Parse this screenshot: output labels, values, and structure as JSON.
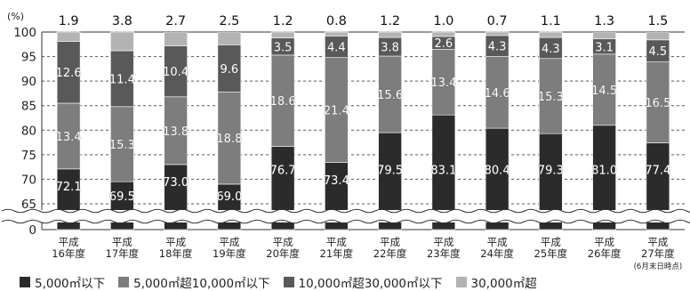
{
  "chart_data": {
    "type": "bar",
    "stacked": true,
    "unit_label": "(%)",
    "categories": [
      [
        "平成",
        "16年度"
      ],
      [
        "平成",
        "17年度"
      ],
      [
        "平成",
        "18年度"
      ],
      [
        "平成",
        "19年度"
      ],
      [
        "平成",
        "20年度"
      ],
      [
        "平成",
        "21年度"
      ],
      [
        "平成",
        "22年度"
      ],
      [
        "平成",
        "23年度"
      ],
      [
        "平成",
        "24年度"
      ],
      [
        "平成",
        "25年度"
      ],
      [
        "平成",
        "26年度"
      ],
      [
        "平成",
        "27年度",
        "(6月末日時点)"
      ]
    ],
    "series": [
      {
        "name": "5,000㎡以下",
        "color": "#2b2b2b",
        "values": [
          72.1,
          69.5,
          73.0,
          69.0,
          76.7,
          73.4,
          79.5,
          83.1,
          80.4,
          79.3,
          81.0,
          77.4
        ],
        "labels": [
          "72.1",
          "69.5",
          "73.0",
          "69.0",
          "76.7",
          "73.4",
          "79.5",
          "83.1",
          "80.4",
          "79.3",
          "81.0",
          "77.4"
        ]
      },
      {
        "name": "5,000㎡超10,000㎡以下",
        "color": "#7d7d7d",
        "values": [
          13.4,
          15.3,
          13.8,
          18.8,
          18.6,
          21.4,
          15.6,
          13.4,
          14.6,
          15.3,
          14.5,
          16.5
        ],
        "labels": [
          "13.4",
          "15.3",
          "13.8",
          "18.8",
          "18.6",
          "21.4",
          "15.6",
          "13.4",
          "14.6",
          "15.3",
          "14.5",
          "16.5"
        ]
      },
      {
        "name": "10,000㎡超30,000㎡以下",
        "color": "#595959",
        "values": [
          12.6,
          11.4,
          10.4,
          9.6,
          3.5,
          4.4,
          3.8,
          2.6,
          4.3,
          4.3,
          3.1,
          4.5
        ],
        "labels": [
          "12.6",
          "11.4",
          "10.4",
          "9.6",
          "3.5",
          "4.4",
          "3.8",
          "2.6",
          "4.3",
          "4.3",
          "3.1",
          "4.5"
        ]
      },
      {
        "name": "30,000㎡超",
        "color": "#b3b3b3",
        "values": [
          1.9,
          3.8,
          2.7,
          2.5,
          1.2,
          0.8,
          1.2,
          1.0,
          0.7,
          1.1,
          1.3,
          1.5
        ],
        "labels": [
          "1.9",
          "3.8",
          "2.7",
          "2.5",
          "1.2",
          "0.8",
          "1.2",
          "1.0",
          "0.7",
          "1.1",
          "1.3",
          "1.5"
        ]
      }
    ],
    "y_ticks": [
      "100",
      "95",
      "90",
      "85",
      "80",
      "75",
      "70",
      "65",
      "0"
    ],
    "y_tick_values": [
      100,
      95,
      90,
      85,
      80,
      75,
      70,
      65,
      0
    ],
    "ylim": [
      0,
      100
    ],
    "axis_break": true,
    "grid": true,
    "legend_position": "bottom"
  }
}
